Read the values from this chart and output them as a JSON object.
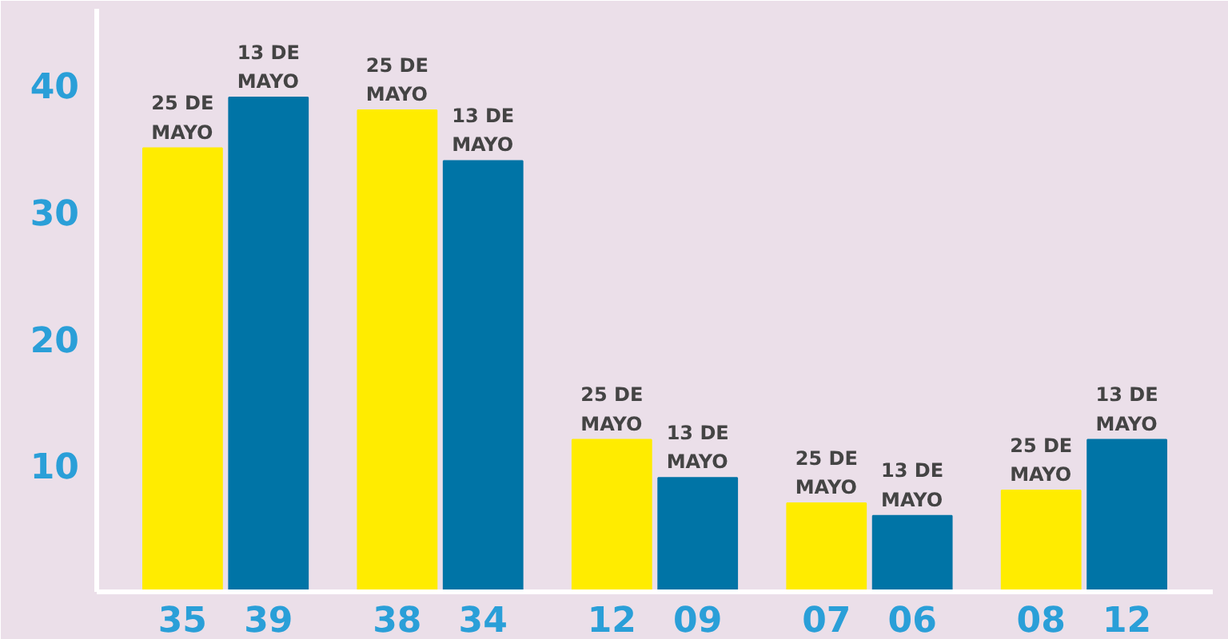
{
  "chart_data": {
    "type": "bar",
    "categories": [
      null,
      null,
      null,
      null,
      null
    ],
    "series": [
      {
        "name": "25 DE MAYO",
        "color": "#ffec00",
        "values": [
          35,
          38,
          12,
          7,
          8
        ],
        "value_labels": [
          "35",
          "38",
          "12",
          "07",
          "08"
        ]
      },
      {
        "name": "13 DE MAYO",
        "color": "#0074a6",
        "values": [
          39,
          34,
          9,
          6,
          12
        ],
        "value_labels": [
          "39",
          "34",
          "09",
          "06",
          "12"
        ]
      }
    ],
    "ylim": [
      0,
      46
    ],
    "yticks": [
      10,
      20,
      30,
      40
    ],
    "grid": false
  }
}
